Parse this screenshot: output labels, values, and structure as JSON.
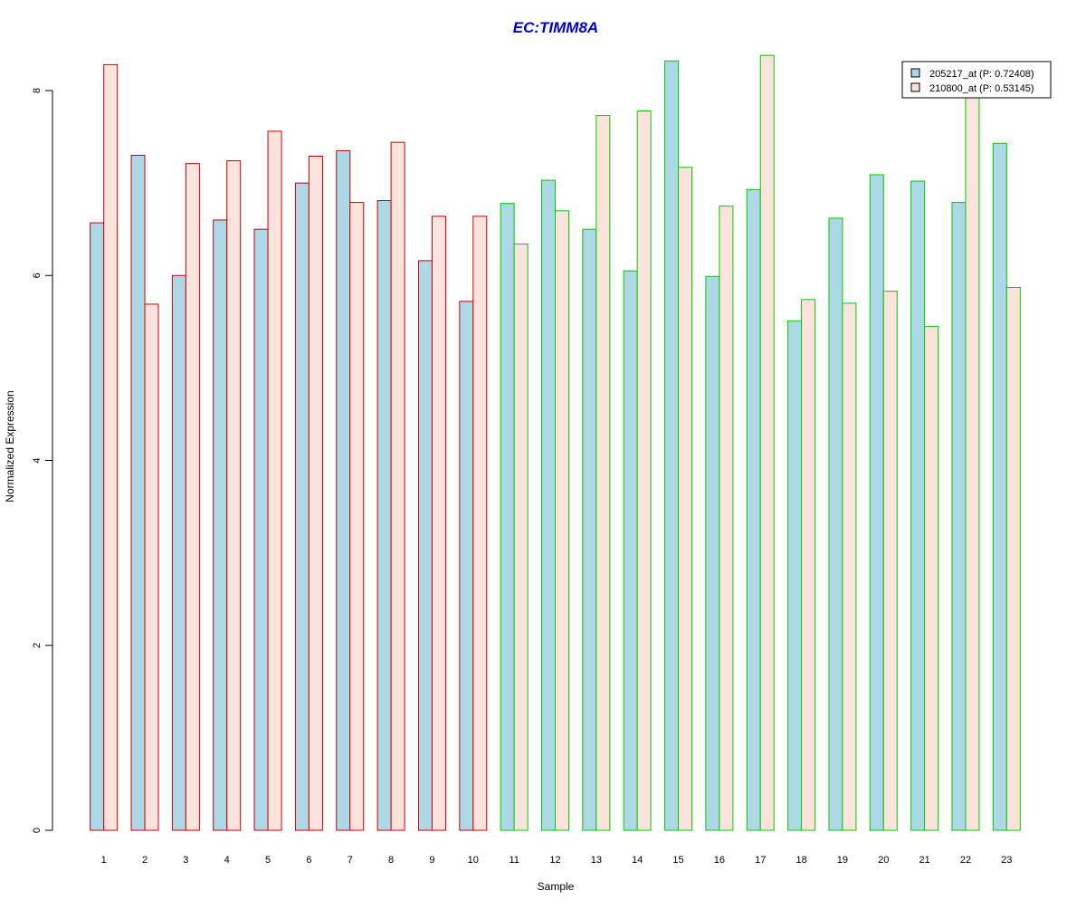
{
  "chart_data": {
    "type": "bar",
    "title": "EC:TIMM8A",
    "xlabel": "Sample",
    "ylabel": "Normalized Expression",
    "ylim": [
      0,
      8.4
    ],
    "yticks": [
      0,
      2,
      4,
      6,
      8
    ],
    "grid": false,
    "legend_position": "top-right",
    "categories": [
      "1",
      "2",
      "3",
      "4",
      "5",
      "6",
      "7",
      "8",
      "9",
      "10",
      "11",
      "12",
      "13",
      "14",
      "15",
      "16",
      "17",
      "18",
      "19",
      "20",
      "21",
      "22",
      "23"
    ],
    "series": [
      {
        "name": "205217_at (P: 0.72408)",
        "fill": "#add8e6",
        "values": [
          6.57,
          7.3,
          6.0,
          6.6,
          6.5,
          7.0,
          7.35,
          6.81,
          6.16,
          5.72,
          6.78,
          7.03,
          6.5,
          6.05,
          8.32,
          5.99,
          6.93,
          5.51,
          6.62,
          7.09,
          7.02,
          6.79,
          7.43
        ]
      },
      {
        "name": "210800_at (P: 0.53145)",
        "fill": "#fce4dc",
        "values": [
          8.28,
          5.69,
          7.21,
          7.24,
          7.56,
          7.29,
          6.79,
          7.44,
          6.64,
          6.64,
          6.34,
          6.7,
          7.73,
          7.78,
          7.17,
          6.75,
          8.38,
          5.74,
          5.7,
          5.83,
          5.45,
          8.0,
          5.87
        ]
      }
    ],
    "group_border_colors": [
      "#cc0000",
      "#cc0000",
      "#cc0000",
      "#cc0000",
      "#cc0000",
      "#cc0000",
      "#cc0000",
      "#cc0000",
      "#cc0000",
      "#cc0000",
      "#00cc00",
      "#00cc00",
      "#00cc00",
      "#00cc00",
      "#00cc00",
      "#00cc00",
      "#00cc00",
      "#00cc00",
      "#00cc00",
      "#00cc00",
      "#00cc00",
      "#00cc00",
      "#00cc00"
    ],
    "title_color": "#0000cc"
  }
}
